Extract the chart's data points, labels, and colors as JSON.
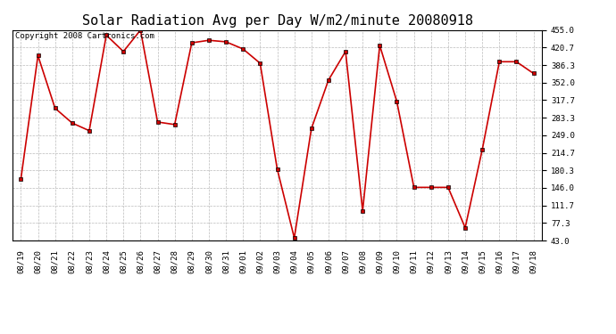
{
  "title": "Solar Radiation Avg per Day W/m2/minute 20080918",
  "copyright": "Copyright 2008 Cartronics.com",
  "x_labels": [
    "08/19",
    "08/20",
    "08/21",
    "08/22",
    "08/23",
    "08/24",
    "08/25",
    "08/26",
    "08/27",
    "08/28",
    "08/29",
    "08/30",
    "08/31",
    "09/01",
    "09/02",
    "09/03",
    "09/04",
    "09/05",
    "09/06",
    "09/07",
    "09/08",
    "09/09",
    "09/10",
    "09/11",
    "09/12",
    "09/13",
    "09/14",
    "09/15",
    "09/16",
    "09/17",
    "09/18"
  ],
  "y_values": [
    163,
    405,
    302,
    273,
    258,
    445,
    413,
    455,
    275,
    270,
    430,
    435,
    432,
    418,
    390,
    183,
    48,
    262,
    357,
    413,
    101,
    425,
    315,
    147,
    147,
    147,
    68,
    221,
    393,
    393,
    370
  ],
  "y_ticks": [
    43.0,
    77.3,
    111.7,
    146.0,
    180.3,
    214.7,
    249.0,
    283.3,
    317.7,
    352.0,
    386.3,
    420.7,
    455.0
  ],
  "ylim": [
    43.0,
    455.0
  ],
  "line_color": "#cc0000",
  "marker": "s",
  "marker_color": "#cc0000",
  "marker_size": 3,
  "bg_color": "#ffffff",
  "grid_color": "#bbbbbb",
  "title_fontsize": 11,
  "copyright_fontsize": 6.5,
  "tick_fontsize": 6.5
}
